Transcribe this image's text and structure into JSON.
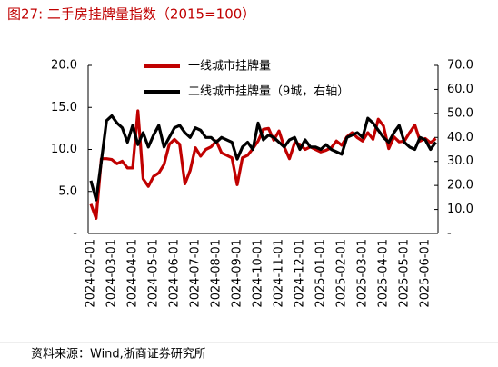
{
  "chart_data": {
    "type": "line",
    "title": "图27:  二手房挂牌量指数（2015=100）",
    "source": "资料来源：Wind,浙商证券研究所",
    "categories": [
      "2024-02-01",
      null,
      null,
      null,
      "2024-03-01",
      null,
      null,
      null,
      "2024-04-01",
      null,
      null,
      null,
      "2024-05-01",
      null,
      null,
      null,
      "2024-06-01",
      null,
      null,
      null,
      "2024-07-01",
      null,
      null,
      null,
      "2024-08-01",
      null,
      null,
      null,
      "2024-09-01",
      null,
      null,
      null,
      "2024-10-01",
      null,
      null,
      null,
      "2024-11-01",
      null,
      null,
      null,
      "2024-12-01",
      null,
      null,
      null,
      "2025-01-01",
      null,
      null,
      null,
      "2025-02-01",
      null,
      null,
      null,
      "2025-03-01",
      null,
      null,
      null,
      "2025-04-01",
      null,
      null,
      null,
      "2025-05-01",
      null,
      null,
      null,
      "2025-06-01",
      null,
      null
    ],
    "series": [
      {
        "name": "一线城市挂牌量",
        "color": "#c00000",
        "axis": "y",
        "values": [
          3.5,
          1.8,
          8.9,
          8.9,
          8.8,
          8.3,
          8.6,
          7.8,
          7.8,
          14.6,
          6.5,
          5.6,
          6.8,
          7.2,
          8.2,
          10.6,
          11.2,
          10.6,
          5.9,
          7.5,
          10.2,
          9.2,
          10.0,
          10.3,
          11.0,
          9.6,
          9.3,
          9.0,
          5.8,
          9.0,
          9.3,
          10.1,
          11.0,
          12.4,
          12.5,
          11.1,
          12.2,
          10.3,
          8.9,
          10.8,
          10.6,
          10.0,
          10.3,
          10.0,
          9.7,
          9.9,
          10.2,
          11.0,
          10.5,
          11.5,
          12.0,
          11.4,
          11.0,
          12.0,
          11.2,
          13.6,
          12.8,
          10.1,
          11.5,
          10.9,
          11.0,
          12.0,
          12.9,
          11.0,
          11.3,
          10.8,
          11.3
        ]
      },
      {
        "name": "二线城市挂牌量（9城，右轴）",
        "color": "#000000",
        "axis": "y2",
        "values": [
          22,
          14,
          30,
          47,
          49,
          46,
          44,
          38,
          45,
          37,
          42,
          36,
          41,
          45,
          36,
          40,
          44,
          45,
          42,
          40,
          44,
          43,
          40,
          40,
          38,
          40,
          39,
          38,
          31,
          36,
          38,
          35,
          46,
          39,
          41,
          40,
          38,
          36,
          39,
          40,
          35,
          39,
          36,
          36,
          35,
          37,
          35,
          34,
          33,
          40,
          41,
          42,
          40,
          48,
          46,
          43,
          40,
          38,
          42,
          45,
          38,
          36,
          35,
          40,
          39,
          35,
          38
        ]
      }
    ],
    "ylim": [
      0,
      20
    ],
    "yticks": [
      {
        "value": 0,
        "label": "-"
      },
      {
        "value": 5,
        "label": "5.0"
      },
      {
        "value": 10,
        "label": "10.0"
      },
      {
        "value": 15,
        "label": "15.0"
      },
      {
        "value": 20,
        "label": "20.0"
      }
    ],
    "y2lim": [
      0,
      70
    ],
    "y2ticks": [
      {
        "value": 0,
        "label": "-"
      },
      {
        "value": 10,
        "label": "10.0"
      },
      {
        "value": 20,
        "label": "20.0"
      },
      {
        "value": 30,
        "label": "30.0"
      },
      {
        "value": 40,
        "label": "40.0"
      },
      {
        "value": 50,
        "label": "50.0"
      },
      {
        "value": 60,
        "label": "60.0"
      },
      {
        "value": 70,
        "label": "70.0"
      }
    ]
  }
}
